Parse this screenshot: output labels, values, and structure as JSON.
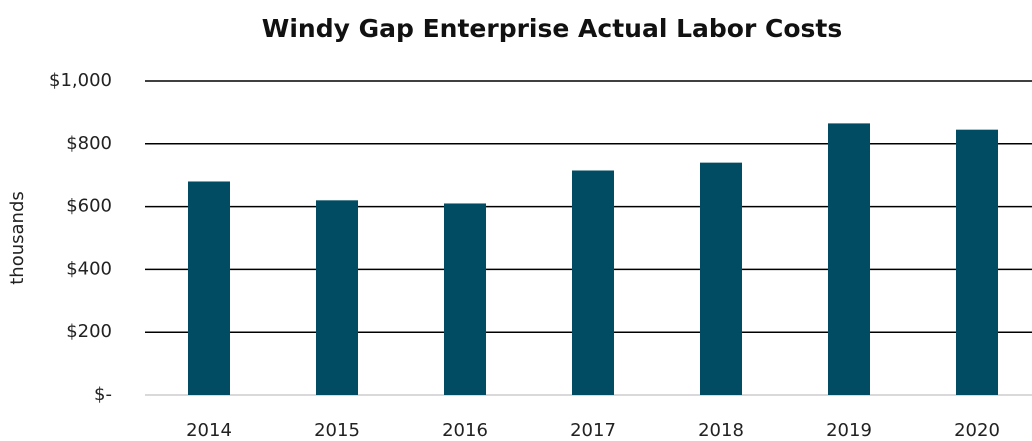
{
  "chart_data": {
    "type": "bar",
    "title": "Windy Gap Enterprise Actual Labor Costs",
    "y_label": "thousands",
    "categories": [
      "2014",
      "2015",
      "2016",
      "2017",
      "2018",
      "2019",
      "2020"
    ],
    "values": [
      680,
      620,
      610,
      715,
      740,
      865,
      845
    ],
    "color": "#024c63",
    "ylim": [
      0,
      1000
    ],
    "yticks": [
      {
        "value": 0,
        "label": "$-"
      },
      {
        "value": 200,
        "label": "$200"
      },
      {
        "value": 400,
        "label": "$400"
      },
      {
        "value": 600,
        "label": "$600"
      },
      {
        "value": 800,
        "label": "$800"
      },
      {
        "value": 1000,
        "label": "$1,000"
      }
    ],
    "grid": true
  }
}
